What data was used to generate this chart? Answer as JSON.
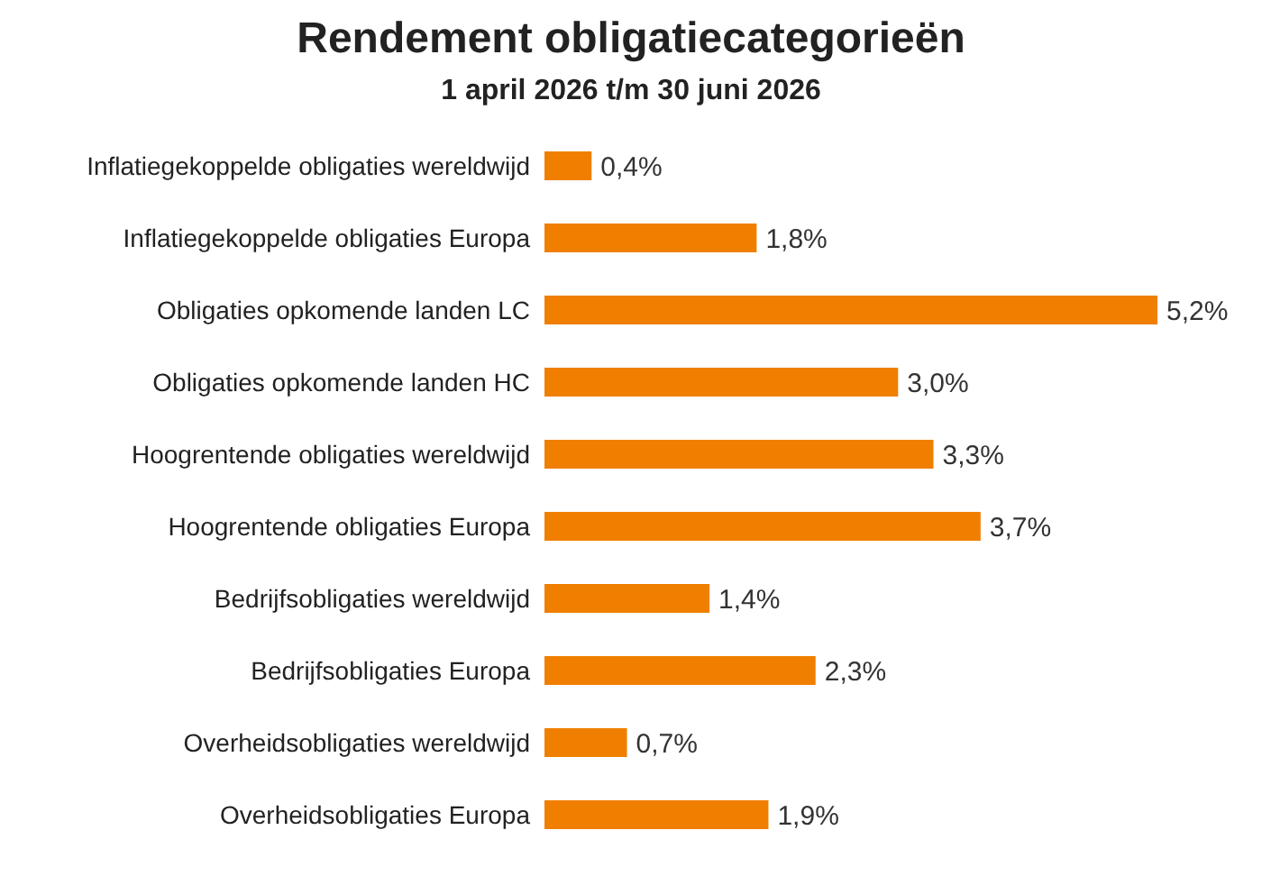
{
  "chart_data": {
    "type": "bar",
    "orientation": "horizontal",
    "title": "Rendement obligatiecategorieën",
    "subtitle": "1 april 2026 t/m 30 juni 2026",
    "categories": [
      "Inflatiegekoppelde obligaties wereldwijd",
      "Inflatiegekoppelde obligaties Europa",
      "Obligaties opkomende landen LC",
      "Obligaties opkomende landen HC",
      "Hoogrentende obligaties wereldwijd",
      "Hoogrentende obligaties Europa",
      "Bedrijfsobligaties wereldwijd",
      "Bedrijfsobligaties Europa",
      "Overheidsobligaties wereldwijd",
      "Overheidsobligaties Europa"
    ],
    "values": [
      0.4,
      1.8,
      5.2,
      3.0,
      3.3,
      3.7,
      1.4,
      2.3,
      0.7,
      1.9
    ],
    "value_labels": [
      "0,4%",
      "1,8%",
      "5,2%",
      "3,0%",
      "3,3%",
      "3,7%",
      "1,4%",
      "2,3%",
      "0,7%",
      "1,9%"
    ],
    "color": "#f07f00"
  }
}
